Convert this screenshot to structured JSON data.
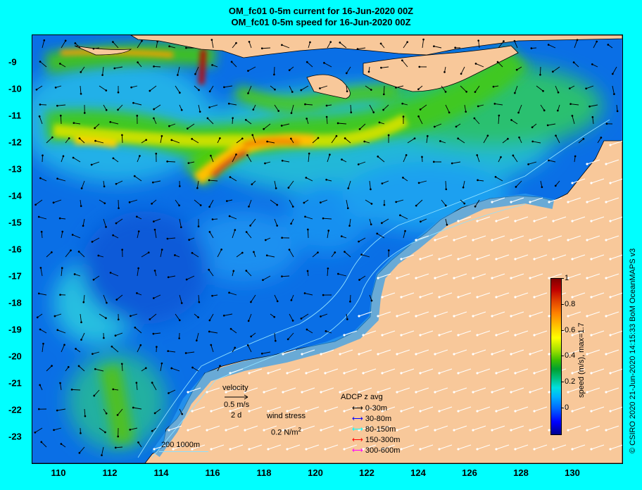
{
  "titles": {
    "line1": "OM_fc01 0-5m current for 16-Jun-2020 00Z",
    "line2": "OM_fc01 0-5m speed for 16-Jun-2020 00Z"
  },
  "axes": {
    "lon_labels": [
      "110",
      "112",
      "114",
      "116",
      "118",
      "120",
      "122",
      "124",
      "126",
      "128",
      "130"
    ],
    "lat_labels": [
      "-9",
      "-10",
      "-11",
      "-12",
      "-13",
      "-14",
      "-15",
      "-16",
      "-17",
      "-18",
      "-19",
      "-20",
      "-21",
      "-22",
      "-23"
    ],
    "lon_range": [
      109.0,
      132.0
    ],
    "lat_range": [
      -23.8,
      -7.8
    ]
  },
  "velocity_legend": {
    "title": "velocity",
    "speed": "0.5 m/s",
    "time": "2 d"
  },
  "wind_legend": {
    "title": "wind stress",
    "value": "0.2 N/m",
    "exponent": "2"
  },
  "isobath_legend": {
    "label": "200  1000m"
  },
  "adcp_legend": {
    "title": "ADCP z avg",
    "items": [
      {
        "label": "0-30m",
        "color": "#000000"
      },
      {
        "label": "30-80m",
        "color": "#0000ff"
      },
      {
        "label": "80-150m",
        "color": "#00ffff"
      },
      {
        "label": "150-300m",
        "color": "#ff0000"
      },
      {
        "label": "300-600m",
        "color": "#ff00ff"
      }
    ]
  },
  "colorbar": {
    "title": "speed (m/s), max=1.7",
    "ticks": [
      "0",
      "0.2",
      "0.4",
      "0.6",
      "0.8",
      "1"
    ],
    "range": [
      -0.2,
      1.0
    ]
  },
  "credit": "© CSIRO 2020   21-Jun-2020 14:15:33 BoM OceanMAPS v3",
  "colors": {
    "background": "#00ffff",
    "land": "#f8c89a",
    "ocean_base": "#0070e8",
    "jet_core": "#c83c10",
    "wind_arrow": "#ffffff",
    "current_arrow": "#000000"
  }
}
